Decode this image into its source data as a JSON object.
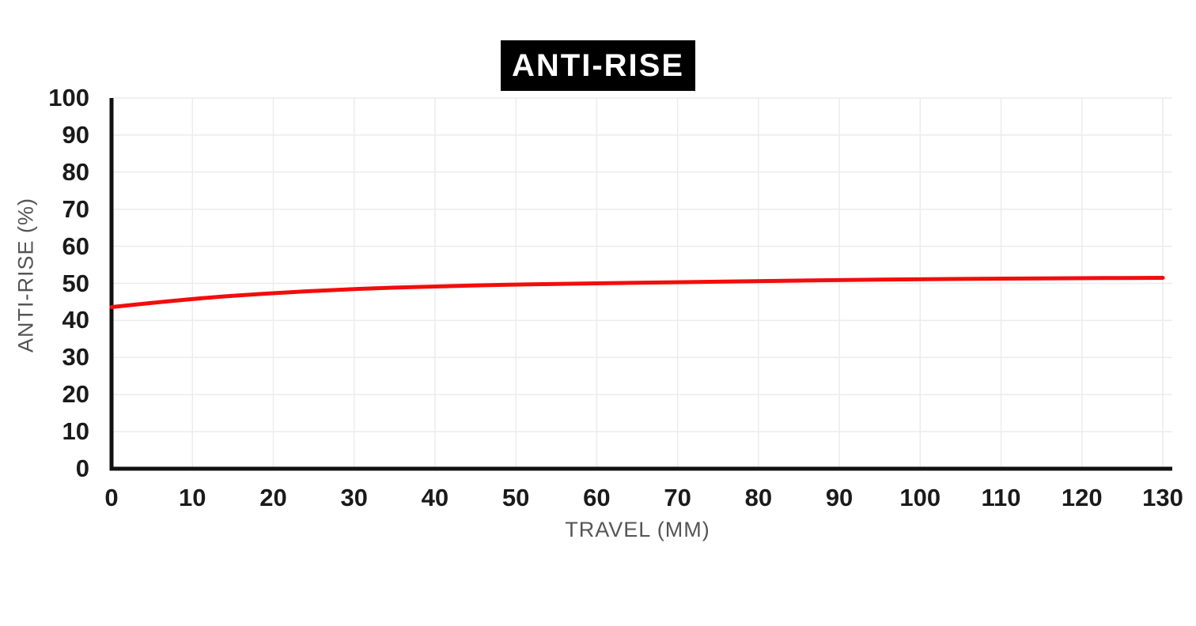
{
  "chart_data": {
    "type": "line",
    "title": "ANTI-RISE",
    "xlabel": "TRAVEL (MM)",
    "ylabel": "ANTI-RISE (%)",
    "xlim": [
      0,
      130
    ],
    "ylim": [
      0,
      100
    ],
    "x_ticks": [
      0,
      10,
      20,
      30,
      40,
      50,
      60,
      70,
      80,
      90,
      100,
      110,
      120,
      130
    ],
    "y_ticks": [
      0,
      10,
      20,
      30,
      40,
      50,
      60,
      70,
      80,
      90,
      100
    ],
    "grid": true,
    "legend": false,
    "series": [
      {
        "name": "Anti-rise",
        "color": "#f20d0d",
        "x": [
          0,
          10,
          20,
          30,
          40,
          50,
          60,
          70,
          80,
          90,
          100,
          110,
          120,
          130
        ],
        "y": [
          43.6,
          45.9,
          47.4,
          48.5,
          49.2,
          49.7,
          50.0,
          50.3,
          50.6,
          50.9,
          51.1,
          51.3,
          51.4,
          51.5
        ]
      }
    ],
    "colors": {
      "title_bg": "#000000",
      "title_fg": "#ffffff",
      "line": "#f20d0d",
      "grid": "#ececec",
      "axis": "#111111",
      "tick_label": "#1a1a1a",
      "axis_title": "#555555",
      "background": "#ffffff"
    }
  }
}
